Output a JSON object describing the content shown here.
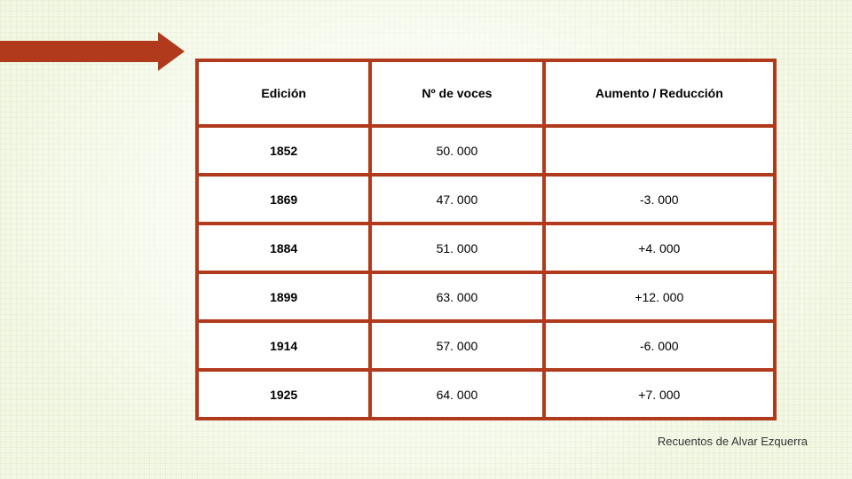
{
  "colors": {
    "accent": "#b13a1d",
    "table_border": "#b13a1d",
    "background": "#f2f8e4",
    "cell_bg": "#ffffff",
    "text": "#000000"
  },
  "decoration": {
    "bar_color": "#b13a1d",
    "triangle_color": "#b13a1d"
  },
  "table": {
    "headers": {
      "c0": "Edición",
      "c1": "Nº de voces",
      "c2": "Aumento / Reducción"
    },
    "rows": [
      {
        "c0": "1852",
        "c1": "50. 000",
        "c2": ""
      },
      {
        "c0": "1869",
        "c1": "47. 000",
        "c2": "-3. 000"
      },
      {
        "c0": "1884",
        "c1": "51. 000",
        "c2": "+4. 000"
      },
      {
        "c0": "1899",
        "c1": "63. 000",
        "c2": "+12. 000"
      },
      {
        "c0": "1914",
        "c1": "57. 000",
        "c2": "-6. 000"
      },
      {
        "c0": "1925",
        "c1": "64. 000",
        "c2": "+7. 000"
      }
    ]
  },
  "caption": "Recuentos de Alvar Ezquerra"
}
